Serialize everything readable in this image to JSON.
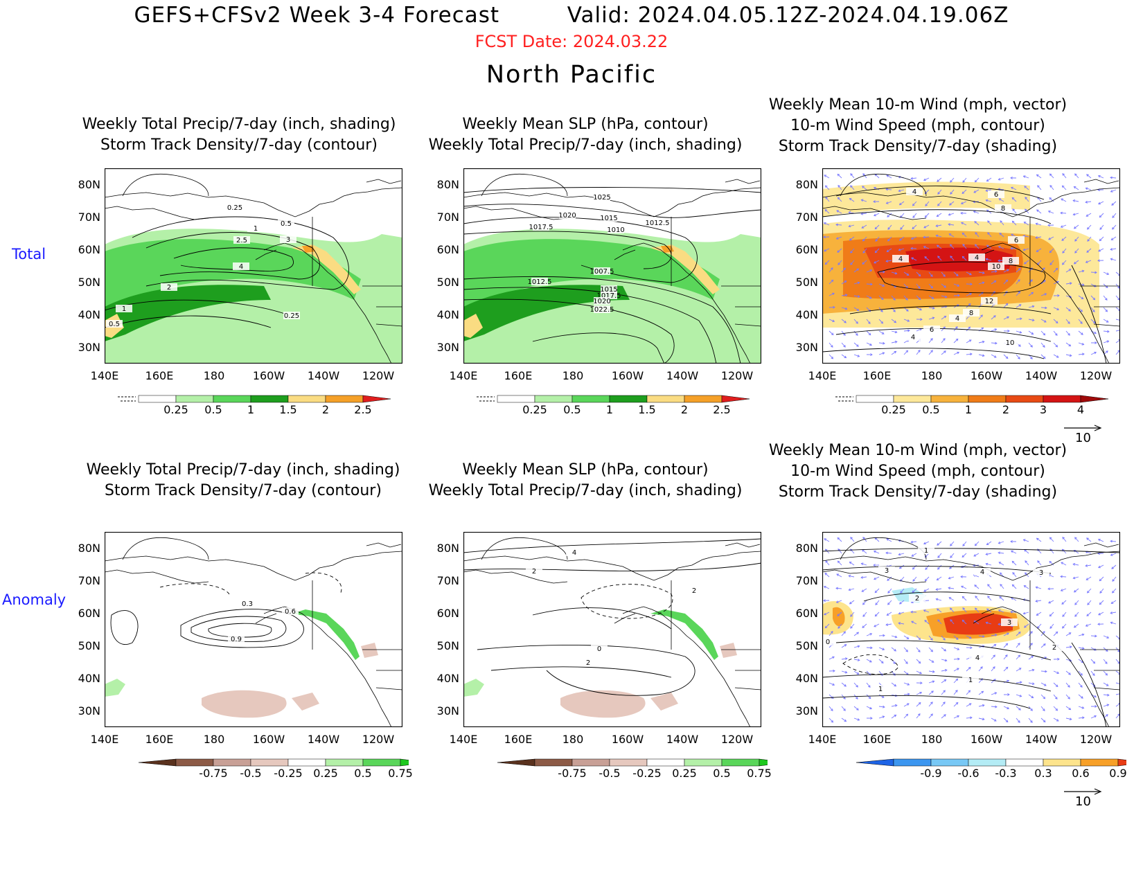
{
  "header": {
    "title": "GEFS+CFSv2 Week 3-4 Forecast         Valid: 2024.04.05.12Z-2024.04.19.06Z",
    "fcst_date": "FCST Date: 2024.03.22",
    "region": "North Pacific"
  },
  "rows": {
    "total": "Total",
    "anomaly": "Anomaly"
  },
  "axes": {
    "lat_labels": [
      "80N",
      "70N",
      "60N",
      "50N",
      "40N",
      "30N"
    ],
    "lon_labels": [
      "140E",
      "160E",
      "180",
      "160W",
      "140W",
      "120W"
    ]
  },
  "panels": {
    "p1": {
      "title1": "Weekly Total Precip/7-day (inch, shading)",
      "title2": "Storm Track Density/7-day (contour)",
      "contour_labels": [
        "0.25",
        "0.5",
        "1",
        "2.5",
        "3",
        "4",
        "2",
        "1",
        "0.5",
        "0.25"
      ]
    },
    "p2": {
      "title1": "Weekly Mean SLP (hPa, contour)",
      "title2": "Weekly Total Precip/7-day (inch, shading)",
      "contour_labels": [
        "1025",
        "1020",
        "1015",
        "1017.5",
        "1010",
        "1012.5",
        "1007.5",
        "1012.5",
        "1015",
        "1017.5",
        "1020",
        "1022.5"
      ]
    },
    "p3": {
      "title0": "Weekly Mean 10-m Wind (mph, vector)",
      "title1": "10-m Wind Speed (mph, contour)",
      "title2": "Storm Track Density/7-day (shading)",
      "contour_labels": [
        "4",
        "6",
        "8",
        "6",
        "4",
        "4",
        "10",
        "8",
        "12",
        "8",
        "4",
        "6",
        "4",
        "10"
      ]
    },
    "p4": {
      "title1": "Weekly Total Precip/7-day (inch, shading)",
      "title2": "Storm Track Density/7-day (contour)",
      "contour_labels": [
        "0.3",
        "0.6",
        "0.9"
      ]
    },
    "p5": {
      "title1": "Weekly Mean SLP (hPa, contour)",
      "title2": "Weekly Total Precip/7-day (inch, shading)",
      "contour_labels": [
        "4",
        "2",
        "2",
        "0",
        "2"
      ]
    },
    "p6": {
      "title0": "Weekly Mean 10-m Wind (mph, vector)",
      "title1": "10-m Wind Speed (mph, contour)",
      "title2": "Storm Track Density/7-day (shading)",
      "contour_labels": [
        "1",
        "3",
        "4",
        "3",
        "2",
        "3",
        "0",
        "4",
        "2",
        "1",
        "1"
      ]
    }
  },
  "colorbars": {
    "precip_total": {
      "ticks": [
        "0.25",
        "0.5",
        "1",
        "1.5",
        "2",
        "2.5"
      ],
      "colors": [
        "#ffffff",
        "#b4f0a8",
        "#5ad65a",
        "#1e9e1e",
        "#fadc82",
        "#f5a028",
        "#e01e1e"
      ]
    },
    "storm_total": {
      "ticks": [
        "0.25",
        "0.5",
        "1",
        "2",
        "3",
        "4"
      ],
      "colors": [
        "#ffffff",
        "#fde89a",
        "#f7b23c",
        "#f07c18",
        "#e84a14",
        "#d41414",
        "#a00a0a"
      ]
    },
    "precip_anom": {
      "ticks": [
        "-0.75",
        "-0.5",
        "-0.25",
        "0.25",
        "0.5",
        "0.75"
      ],
      "colors": [
        "#5a321e",
        "#8c5a46",
        "#c8a096",
        "#e6c8be",
        "#ffffff",
        "#b4f0a8",
        "#5ad65a",
        "#1ec81e"
      ]
    },
    "storm_anom": {
      "ticks": [
        "-0.9",
        "-0.6",
        "-0.3",
        "0.3",
        "0.6",
        "0.9"
      ],
      "colors": [
        "#1e64e6",
        "#3c96f0",
        "#78c8f5",
        "#b4ecf5",
        "#ffffff",
        "#fde48c",
        "#f7a028",
        "#e83c14"
      ]
    }
  },
  "vector_ref": "10"
}
